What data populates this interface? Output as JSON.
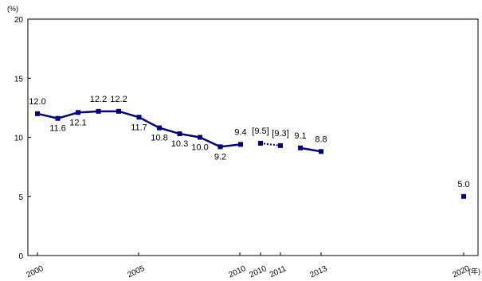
{
  "chart_data": {
    "type": "line",
    "title": "",
    "xlabel": "",
    "ylabel": "",
    "y_unit": "(%)",
    "x_unit": "(年)",
    "ylim": [
      0,
      20
    ],
    "yticks": [
      "0",
      "5",
      "10",
      "15",
      "20"
    ],
    "grid": false,
    "legend": "none",
    "color": "#000080",
    "x_tick_labels": [
      "2000",
      "2005",
      "2010",
      "2010",
      "2011",
      "2013",
      "2020"
    ],
    "series": [
      {
        "style": "solid",
        "points": [
          {
            "x": 2000,
            "y": 12.0,
            "label": "12.0"
          },
          {
            "x": 2001,
            "y": 11.6,
            "label": "11.6"
          },
          {
            "x": 2002,
            "y": 12.1,
            "label": "12.1"
          },
          {
            "x": 2003,
            "y": 12.2,
            "label": "12.2"
          },
          {
            "x": 2004,
            "y": 12.2,
            "label": "12.2"
          },
          {
            "x": 2005,
            "y": 11.7,
            "label": "11.7"
          },
          {
            "x": 2006,
            "y": 10.8,
            "label": "10.8"
          },
          {
            "x": 2007,
            "y": 10.3,
            "label": "10.3"
          },
          {
            "x": 2008,
            "y": 10.0,
            "label": "10.0"
          },
          {
            "x": 2009,
            "y": 9.2,
            "label": "9.2"
          },
          {
            "x": 2010,
            "y": 9.4,
            "label": "9.4"
          }
        ]
      },
      {
        "style": "dotted",
        "points": [
          {
            "x": 2010,
            "y": 9.5,
            "label": "[9.5]"
          },
          {
            "x": 2011,
            "y": 9.3,
            "label": "[9.3]"
          }
        ]
      },
      {
        "style": "solid",
        "points": [
          {
            "x": 2012,
            "y": 9.1,
            "label": "9.1"
          },
          {
            "x": 2013,
            "y": 8.8,
            "label": "8.8"
          }
        ]
      },
      {
        "style": "marker-only",
        "points": [
          {
            "x": 2020,
            "y": 5.0,
            "label": "5.0"
          }
        ]
      }
    ]
  }
}
